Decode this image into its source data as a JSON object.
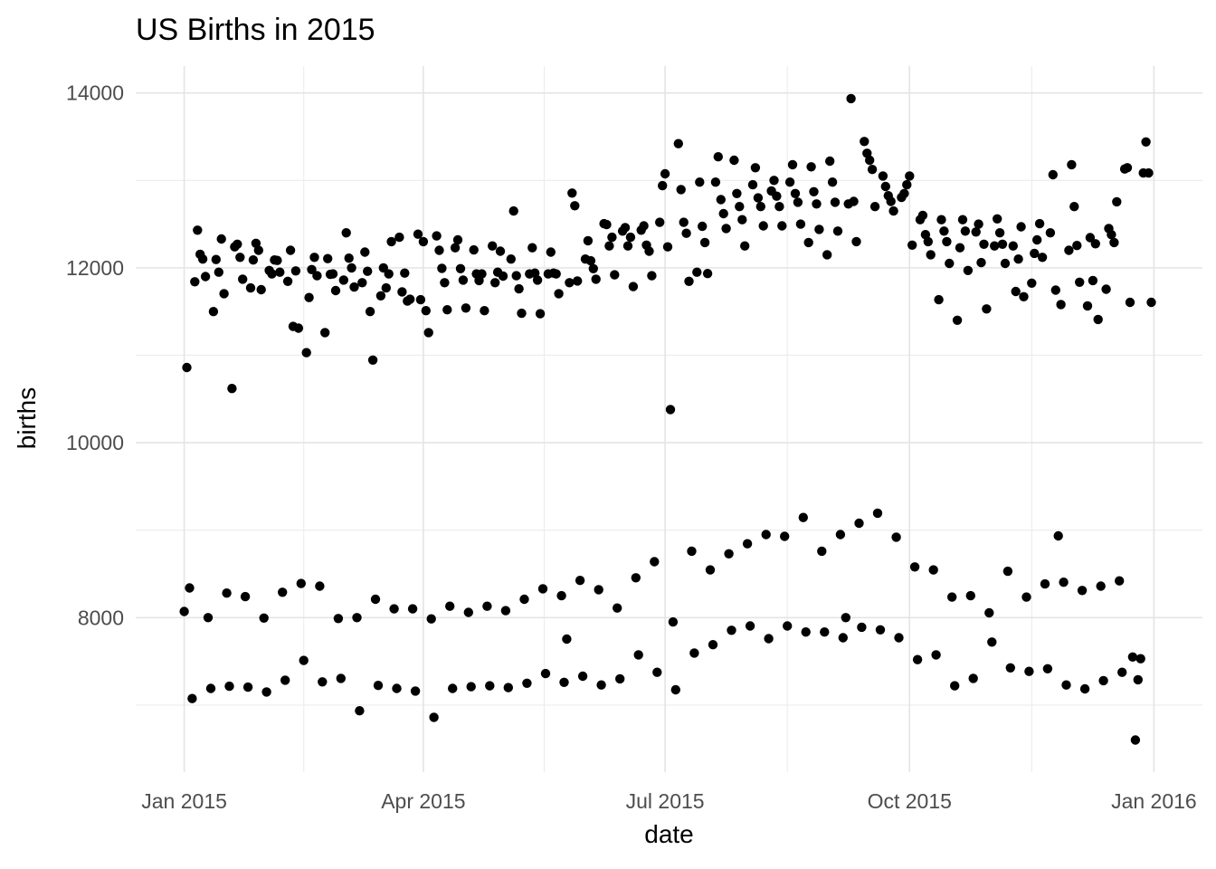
{
  "page": {
    "background": "#ffffff"
  },
  "chart_data": {
    "type": "scatter",
    "title": "US Births in 2015",
    "xlabel": "date",
    "ylabel": "births",
    "legend": "none",
    "grid": "major and minor, light gray, no panel border, no axis ticks",
    "point_color": "#000000",
    "point_radius": 5.2,
    "tick_label_color": "#4d4d4d",
    "major_grid_color": "#e4e4e4",
    "minor_grid_color": "#ececec",
    "x_axis": {
      "tick_labels": [
        "Jan 2015",
        "Apr 2015",
        "Jul 2015",
        "Oct 2015",
        "Jan 2016"
      ],
      "tick_days": [
        0,
        90,
        181,
        273,
        365
      ],
      "minor_days": [
        45,
        135.5,
        227,
        319
      ],
      "range_days": [
        -18.25,
        383.25
      ],
      "start_date": "2015-01-01"
    },
    "y_axis": {
      "tick_labels": [
        "8000",
        "10000",
        "12000",
        "14000"
      ],
      "tick_values": [
        8000,
        10000,
        12000,
        14000
      ],
      "minor_values": [
        7000,
        9000,
        11000,
        13000
      ],
      "range": [
        6233,
        14307
      ]
    },
    "series_description": "One point per day of 2015. Weekday band ~11000-14000, Saturday band ~8000-9200, Sunday band ~6900-7900. Holiday lows: Jan 1 (8070), Jan 19 MLK (10620), Feb 16 (11030), Jul 3 (10380), May 25 (7755), Sep 7 (8000), Nov 26 (8935), Dec 25 (6600). Peak Sep 9 (13935).",
    "daily_births": [
      8070,
      10860,
      8340,
      7075,
      11840,
      12430,
      12155,
      12100,
      11900,
      8000,
      7190,
      11500,
      12095,
      11950,
      12330,
      11705,
      8280,
      7215,
      10620,
      12240,
      12270,
      12120,
      11870,
      8240,
      7205,
      11770,
      12090,
      12280,
      12200,
      11750,
      7995,
      7150,
      11970,
      11930,
      12090,
      12085,
      11950,
      8290,
      7285,
      11845,
      12200,
      11330,
      11965,
      11310,
      8390,
      7510,
      11030,
      11660,
      11980,
      12120,
      11910,
      8360,
      7265,
      11260,
      12105,
      11925,
      11930,
      11740,
      7990,
      7305,
      11860,
      12400,
      12110,
      12000,
      11780,
      8000,
      6935,
      11830,
      12180,
      11960,
      11500,
      10945,
      8210,
      7225,
      11680,
      12000,
      11770,
      11930,
      12300,
      8100,
      7190,
      12350,
      11725,
      11940,
      11620,
      11640,
      8100,
      7160,
      12385,
      11635,
      12300,
      11510,
      11260,
      7985,
      6860,
      12365,
      12200,
      11995,
      11830,
      11520,
      8130,
      7190,
      12230,
      12320,
      11990,
      11860,
      11540,
      8060,
      7210,
      12205,
      11930,
      11855,
      11930,
      11510,
      8130,
      7220,
      12250,
      11830,
      11950,
      12190,
      11905,
      8080,
      7200,
      12100,
      12650,
      11910,
      11760,
      11480,
      8210,
      7250,
      11930,
      12230,
      11940,
      11860,
      11475,
      8330,
      7360,
      11930,
      12180,
      11940,
      11930,
      11705,
      8250,
      7260,
      7755,
      11830,
      12855,
      12710,
      11850,
      8425,
      7330,
      12100,
      12310,
      12080,
      11990,
      11870,
      8320,
      7230,
      12505,
      12495,
      12250,
      12350,
      11920,
      8110,
      7300,
      12420,
      12460,
      12250,
      12350,
      11785,
      8455,
      7575,
      12430,
      12480,
      12260,
      12190,
      11910,
      8640,
      7375,
      12520,
      12940,
      13075,
      12240,
      10380,
      7950,
      7175,
      13420,
      12895,
      12520,
      12395,
      11845,
      8760,
      7595,
      11950,
      12980,
      12475,
      12290,
      11935,
      8545,
      7690,
      12980,
      13270,
      12780,
      12620,
      12450,
      8730,
      7855,
      13230,
      12850,
      12700,
      12550,
      12250,
      8845,
      7905,
      12950,
      13145,
      12800,
      12700,
      12480,
      8950,
      7760,
      12880,
      13000,
      12820,
      12700,
      12480,
      8930,
      7905,
      12980,
      13180,
      12850,
      12750,
      12500,
      9145,
      7835,
      12290,
      13155,
      12870,
      12730,
      12440,
      8760,
      7835,
      12150,
      13220,
      12980,
      12750,
      12420,
      8950,
      7770,
      8000,
      12730,
      13935,
      12760,
      12300,
      9080,
      7890,
      13445,
      13310,
      13230,
      13125,
      12700,
      9195,
      7860,
      13050,
      12930,
      12825,
      12760,
      12650,
      8920,
      7770,
      12805,
      12850,
      12950,
      13050,
      12260,
      8580,
      7520,
      12550,
      12600,
      12380,
      12300,
      12150,
      8545,
      7575,
      11635,
      12550,
      12420,
      12300,
      12050,
      8235,
      7220,
      11400,
      12230,
      12550,
      12420,
      11970,
      8250,
      7305,
      12410,
      12500,
      12060,
      12270,
      11530,
      8055,
      7720,
      12250,
      12560,
      12400,
      12270,
      12050,
      8530,
      7425,
      12250,
      11730,
      12100,
      12470,
      11670,
      8235,
      7385,
      11825,
      12165,
      12320,
      12505,
      12120,
      8385,
      7415,
      12400,
      13065,
      11745,
      8935,
      11580,
      8405,
      7230,
      12200,
      13180,
      12700,
      12255,
      11835,
      8310,
      7185,
      11565,
      12345,
      11855,
      12275,
      11410,
      8360,
      7280,
      11755,
      12450,
      12380,
      12290,
      12755,
      8420,
      7375,
      13130,
      13145,
      11605,
      7550,
      6600,
      7290,
      7530,
      13085,
      13440,
      13085,
      11605
    ]
  }
}
